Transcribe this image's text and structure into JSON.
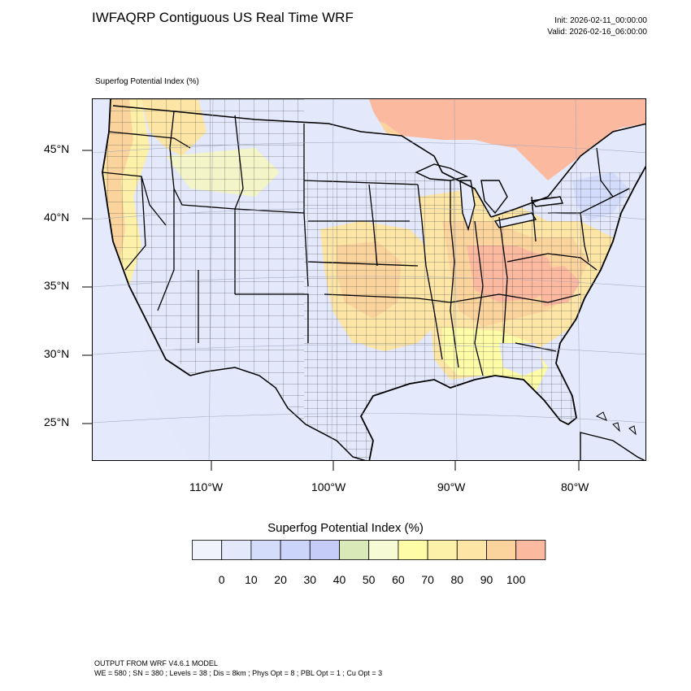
{
  "header": {
    "title": "IWFAQRP Contiguous US Real Time WRF",
    "init": "Init: 2026-02-11_00:00:00",
    "valid": "Valid: 2026-02-16_06:00:00"
  },
  "map": {
    "field_label": "Superfog Potential Index   (%)",
    "lat_labels": [
      "45°N",
      "40°N",
      "35°N",
      "30°N",
      "25°N"
    ],
    "lon_labels": [
      "110°W",
      "100°W",
      "90°W",
      "80°W"
    ]
  },
  "colorbar": {
    "title": "Superfog Potential Index  (%)",
    "colors": [
      "#f0f3f9",
      "#e3e8fb",
      "#d3dcfa",
      "#cbd4fb",
      "#c5ccf8",
      "#d9eab8",
      "#f6fbd6",
      "#fefca6",
      "#fdf0a8",
      "#fce5a5",
      "#fbd49d",
      "#fbb9a0"
    ],
    "labels": [
      "0",
      "10",
      "20",
      "30",
      "40",
      "50",
      "60",
      "70",
      "80",
      "90",
      "100"
    ]
  },
  "footer": {
    "line1": "OUTPUT FROM WRF V4.6.1 MODEL",
    "line2": "WE = 580 ; SN = 380 ; Levels = 38 ; Dis = 8km ; Phys Opt = 8 ; PBL Opt = 1 ; Cu Opt = 3"
  }
}
